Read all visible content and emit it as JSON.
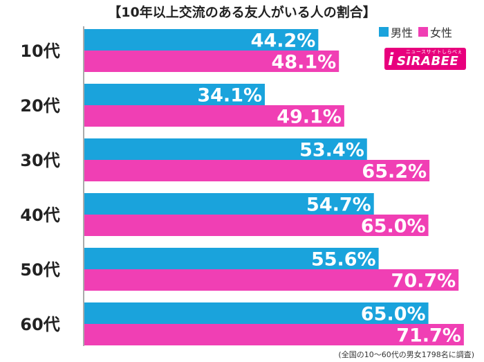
{
  "chart_data": {
    "type": "bar",
    "orientation": "horizontal",
    "title": "【10年以上交流のある友人がいる人の割合】",
    "categories": [
      "10代",
      "20代",
      "30代",
      "40代",
      "50代",
      "60代"
    ],
    "series": [
      {
        "name": "男性",
        "color": "#1aa3dc",
        "values": [
          44.2,
          34.1,
          53.4,
          54.7,
          55.6,
          65.0
        ],
        "labels": [
          "44.2%",
          "34.1%",
          "53.4%",
          "54.7%",
          "55.6%",
          "65.0%"
        ]
      },
      {
        "name": "女性",
        "color": "#f03fb4",
        "values": [
          48.1,
          49.1,
          65.2,
          65.0,
          70.7,
          71.7
        ],
        "labels": [
          "48.1%",
          "49.1%",
          "65.2%",
          "65.0%",
          "70.7%",
          "71.7%"
        ]
      }
    ],
    "xlim": [
      0,
      80
    ],
    "grid": false,
    "legend_position": "top-right"
  },
  "logo": {
    "tagline": "ニュースサイトしらべぇ",
    "text": "SIRABEE"
  },
  "footnote": "(全国の10〜60代の男女1798名に調査)"
}
